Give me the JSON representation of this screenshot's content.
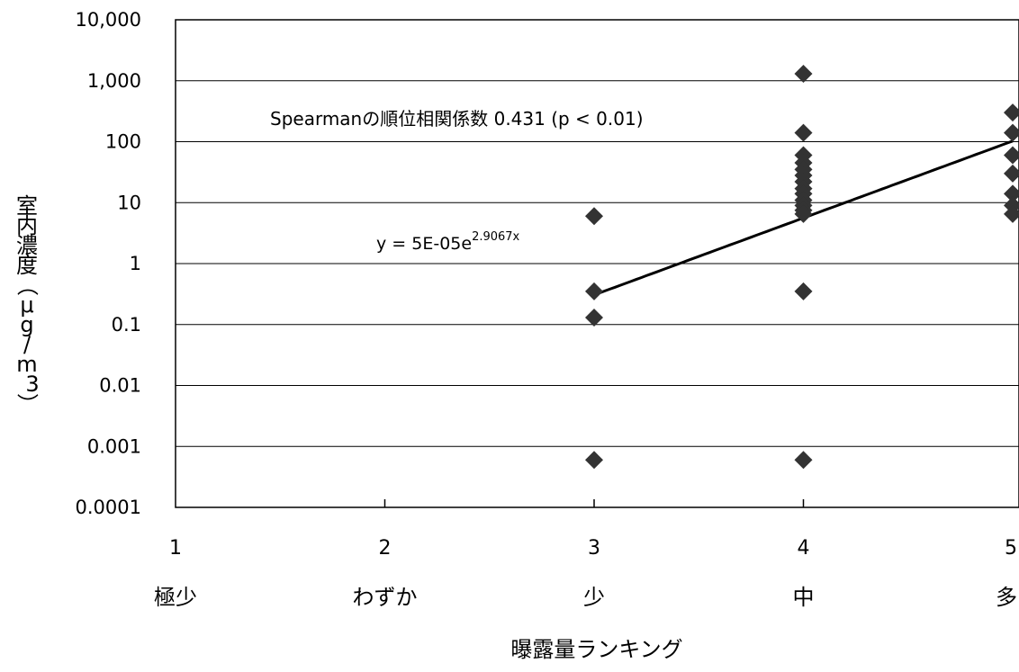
{
  "chart_data": {
    "type": "scatter",
    "title": "",
    "xlabel": "曝露量ランキング",
    "ylabel_chars": [
      "室",
      "内",
      "濃",
      "度",
      "（",
      "μ",
      "g",
      "/",
      "m",
      "3",
      "）"
    ],
    "x_ticks": [
      "1",
      "2",
      "3",
      "4",
      "5"
    ],
    "x_category_labels": [
      "極少",
      "わずか",
      "少",
      "中",
      "多"
    ],
    "y_ticks": [
      "10,000",
      "1,000",
      "100",
      "10",
      "1",
      "0.1",
      "0.01",
      "0.001",
      "0.0001"
    ],
    "y_scale": "log",
    "ylim": [
      0.0001,
      10000
    ],
    "xlim": [
      1,
      5
    ],
    "grid": true,
    "legend": "none",
    "points": [
      {
        "x": 3,
        "y": 6
      },
      {
        "x": 3,
        "y": 0.35
      },
      {
        "x": 3,
        "y": 0.13
      },
      {
        "x": 3,
        "y": 0.0006
      },
      {
        "x": 4,
        "y": 1300
      },
      {
        "x": 4,
        "y": 140
      },
      {
        "x": 4,
        "y": 60
      },
      {
        "x": 4,
        "y": 45
      },
      {
        "x": 4,
        "y": 35
      },
      {
        "x": 4,
        "y": 28
      },
      {
        "x": 4,
        "y": 22
      },
      {
        "x": 4,
        "y": 17
      },
      {
        "x": 4,
        "y": 14
      },
      {
        "x": 4,
        "y": 11
      },
      {
        "x": 4,
        "y": 9
      },
      {
        "x": 4,
        "y": 7.5
      },
      {
        "x": 4,
        "y": 6.5
      },
      {
        "x": 4,
        "y": 0.35
      },
      {
        "x": 4,
        "y": 0.0006
      },
      {
        "x": 5,
        "y": 300
      },
      {
        "x": 5,
        "y": 140
      },
      {
        "x": 5,
        "y": 60
      },
      {
        "x": 5,
        "y": 30
      },
      {
        "x": 5,
        "y": 14
      },
      {
        "x": 5,
        "y": 9
      },
      {
        "x": 5,
        "y": 6.5
      }
    ],
    "trendline": {
      "type": "exponential",
      "a": 5e-05,
      "b": 2.9067,
      "x_range": [
        3,
        5
      ],
      "equation_base": "y = 5E-05e",
      "equation_exponent": "2.9067x"
    },
    "annotation": "Spearmanの順位相関係数 0.431 (p < 0.01)",
    "colors": {
      "marker": "#333333",
      "trendline": "#000000",
      "grid": "#000000",
      "axis": "#000000"
    }
  }
}
